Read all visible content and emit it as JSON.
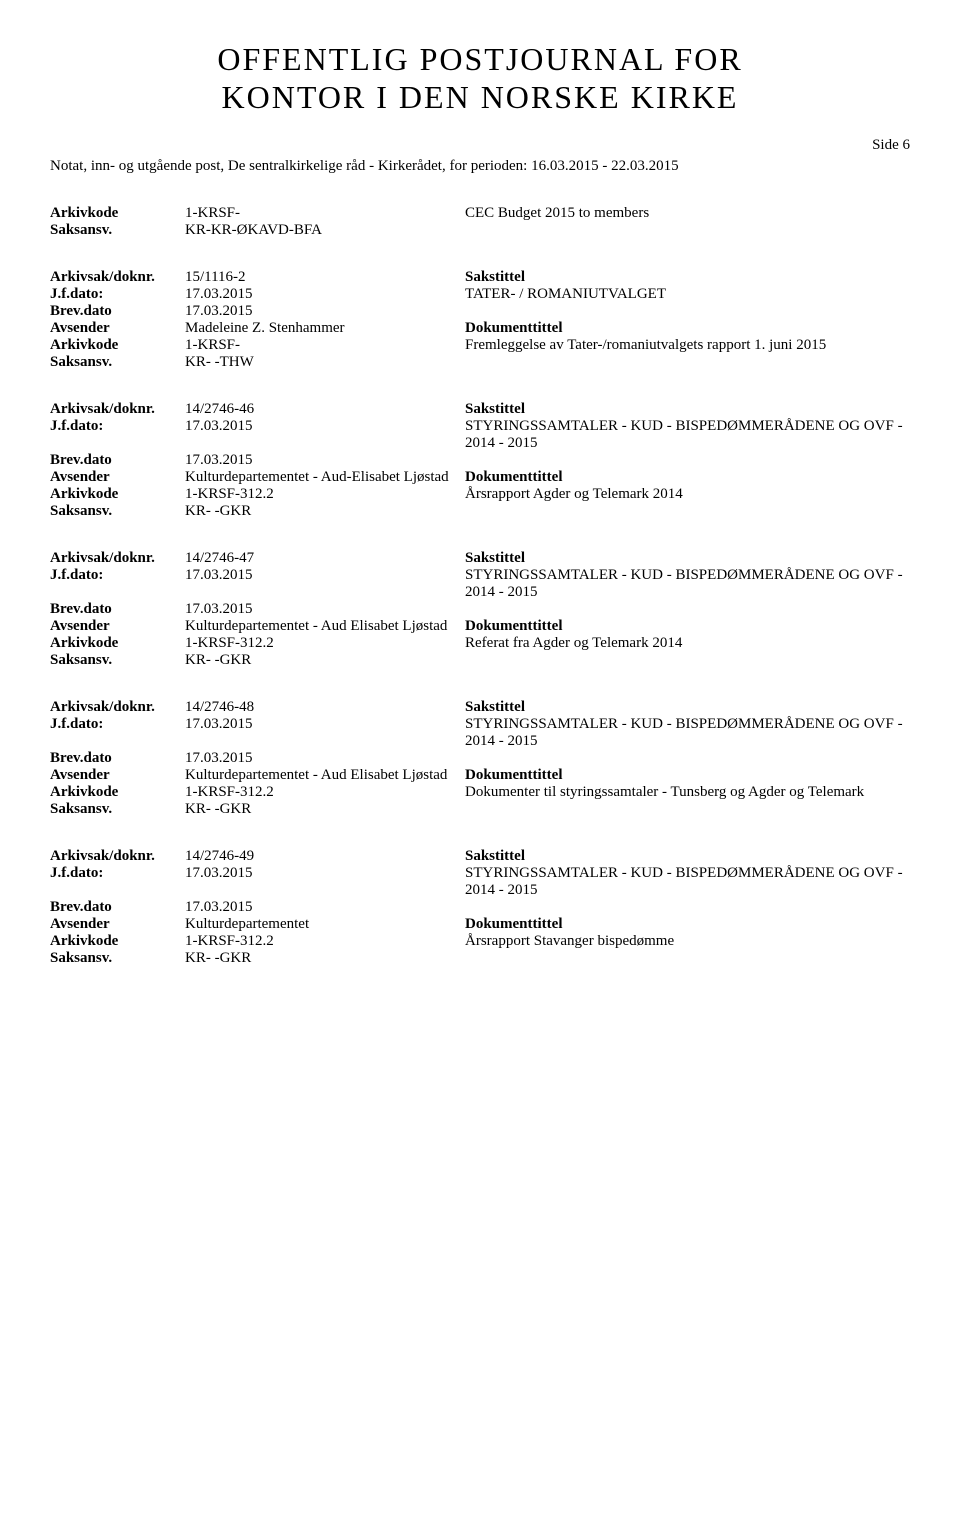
{
  "title_line1": "OFFENTLIG POSTJOURNAL FOR",
  "title_line2": "KONTOR I DEN NORSKE KIRKE",
  "side_label": "Side 6",
  "period_text": "Notat, inn- og utgående post, De sentralkirkelige råd - Kirkerådet, for perioden: 16.03.2015 - 22.03.2015",
  "labels": {
    "arkivsak": "Arkivsak/doknr.",
    "jfdato": "J.f.dato:",
    "brevdato": "Brev.dato",
    "avsender": "Avsender",
    "arkivkode": "Arkivkode",
    "saksansv": "Saksansv.",
    "sakstittel": "Sakstittel",
    "dokumenttittel": "Dokumenttittel"
  },
  "entries": [
    {
      "arkivkode": "1-KRSF-",
      "saksansv": "KR-KR-ØKAVD-BFA",
      "doc_block": "CEC Budget 2015 to members",
      "is_tail": true
    },
    {
      "arkivsak": "15/1116-2",
      "jfdato": "17.03.2015",
      "sakstittel": "TATER- / ROMANIUTVALGET",
      "brevdato": "17.03.2015",
      "avsender": "Madeleine Z. Stenhammer",
      "arkivkode": "1-KRSF-",
      "saksansv": "KR- -THW",
      "doc_block": "Fremleggelse av Tater-/romaniutvalgets rapport 1. juni 2015"
    },
    {
      "arkivsak": "14/2746-46",
      "jfdato": "17.03.2015",
      "sakstittel": "STYRINGSSAMTALER - KUD - BISPEDØMMERÅDENE OG OVF - 2014 - 2015",
      "brevdato": "17.03.2015",
      "avsender": "Kulturdepartementet - Aud-Elisabet Ljøstad",
      "arkivkode": "1-KRSF-312.2",
      "saksansv": "KR- -GKR",
      "doc_block": "Årsrapport Agder og Telemark  2014"
    },
    {
      "arkivsak": "14/2746-47",
      "jfdato": "17.03.2015",
      "sakstittel": "STYRINGSSAMTALER - KUD - BISPEDØMMERÅDENE OG OVF - 2014 - 2015",
      "brevdato": "17.03.2015",
      "avsender": "Kulturdepartementet -  Aud Elisabet Ljøstad",
      "arkivkode": "1-KRSF-312.2",
      "saksansv": "KR- -GKR",
      "doc_block": "Referat fra Agder og Telemark 2014"
    },
    {
      "arkivsak": "14/2746-48",
      "jfdato": "17.03.2015",
      "sakstittel": "STYRINGSSAMTALER - KUD - BISPEDØMMERÅDENE OG OVF - 2014 - 2015",
      "brevdato": "17.03.2015",
      "avsender": "Kulturdepartementet - Aud Elisabet Ljøstad",
      "arkivkode": "1-KRSF-312.2",
      "saksansv": "KR- -GKR",
      "doc_block": "Dokumenter til styringssamtaler - Tunsberg og Agder og Telemark"
    },
    {
      "arkivsak": "14/2746-49",
      "jfdato": "17.03.2015",
      "sakstittel": "STYRINGSSAMTALER - KUD - BISPEDØMMERÅDENE OG OVF - 2014 - 2015",
      "brevdato": "17.03.2015",
      "avsender": "Kulturdepartementet",
      "arkivkode": "1-KRSF-312.2",
      "saksansv": "KR- -GKR",
      "doc_block": "Årsrapport Stavanger bispedømme"
    }
  ]
}
